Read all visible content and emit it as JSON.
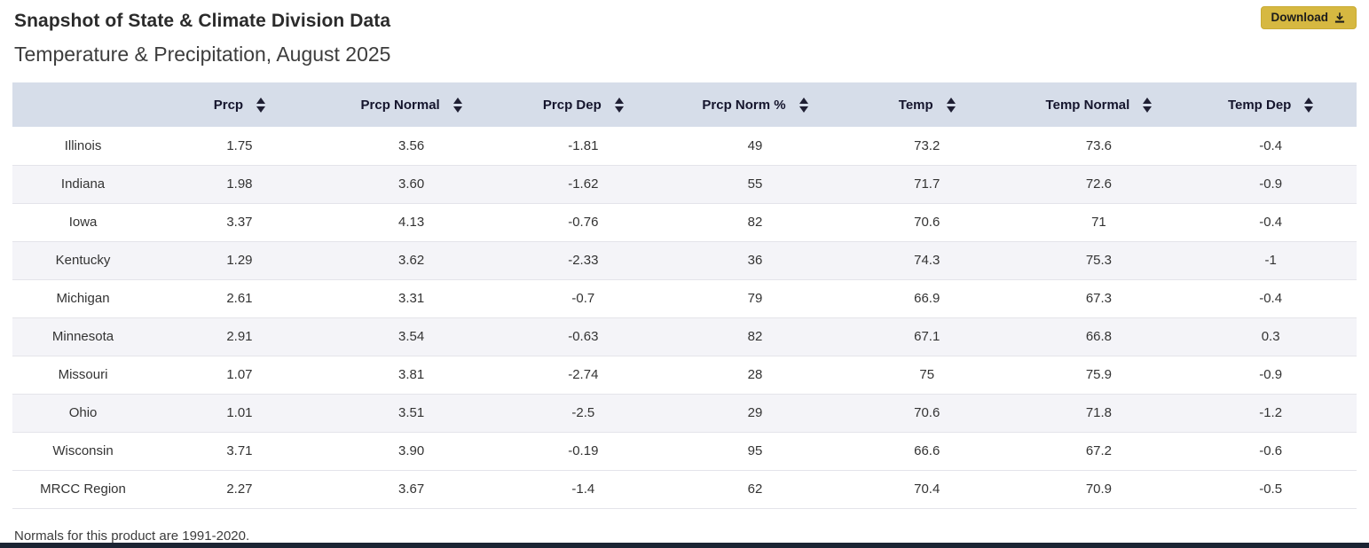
{
  "page": {
    "title": "Snapshot of State & Climate Division Data",
    "subtitle": "Temperature & Precipitation, August 2025",
    "footnote": "Normals for this product are 1991-2020."
  },
  "toolbar": {
    "download_label": "Download"
  },
  "colors": {
    "accent_gold": "#d6b841",
    "header_bg": "#d6dde9",
    "stripe": "#f4f4f8",
    "bottom_bar": "#1b2433"
  },
  "table": {
    "columns": [
      {
        "label": "",
        "sortable": false
      },
      {
        "label": "Prcp",
        "sortable": true
      },
      {
        "label": "Prcp Normal",
        "sortable": true
      },
      {
        "label": "Prcp Dep",
        "sortable": true
      },
      {
        "label": "Prcp Norm %",
        "sortable": true
      },
      {
        "label": "Temp",
        "sortable": true
      },
      {
        "label": "Temp Normal",
        "sortable": true
      },
      {
        "label": "Temp Dep",
        "sortable": true
      }
    ],
    "rows": [
      {
        "name": "Illinois",
        "values": [
          "1.75",
          "3.56",
          "-1.81",
          "49",
          "73.2",
          "73.6",
          "-0.4"
        ]
      },
      {
        "name": "Indiana",
        "values": [
          "1.98",
          "3.60",
          "-1.62",
          "55",
          "71.7",
          "72.6",
          "-0.9"
        ]
      },
      {
        "name": "Iowa",
        "values": [
          "3.37",
          "4.13",
          "-0.76",
          "82",
          "70.6",
          "71",
          "-0.4"
        ]
      },
      {
        "name": "Kentucky",
        "values": [
          "1.29",
          "3.62",
          "-2.33",
          "36",
          "74.3",
          "75.3",
          "-1"
        ]
      },
      {
        "name": "Michigan",
        "values": [
          "2.61",
          "3.31",
          "-0.7",
          "79",
          "66.9",
          "67.3",
          "-0.4"
        ]
      },
      {
        "name": "Minnesota",
        "values": [
          "2.91",
          "3.54",
          "-0.63",
          "82",
          "67.1",
          "66.8",
          "0.3"
        ]
      },
      {
        "name": "Missouri",
        "values": [
          "1.07",
          "3.81",
          "-2.74",
          "28",
          "75",
          "75.9",
          "-0.9"
        ]
      },
      {
        "name": "Ohio",
        "values": [
          "1.01",
          "3.51",
          "-2.5",
          "29",
          "70.6",
          "71.8",
          "-1.2"
        ]
      },
      {
        "name": "Wisconsin",
        "values": [
          "3.71",
          "3.90",
          "-0.19",
          "95",
          "66.6",
          "67.2",
          "-0.6"
        ]
      },
      {
        "name": "MRCC Region",
        "values": [
          "2.27",
          "3.67",
          "-1.4",
          "62",
          "70.4",
          "70.9",
          "-0.5"
        ]
      }
    ]
  }
}
